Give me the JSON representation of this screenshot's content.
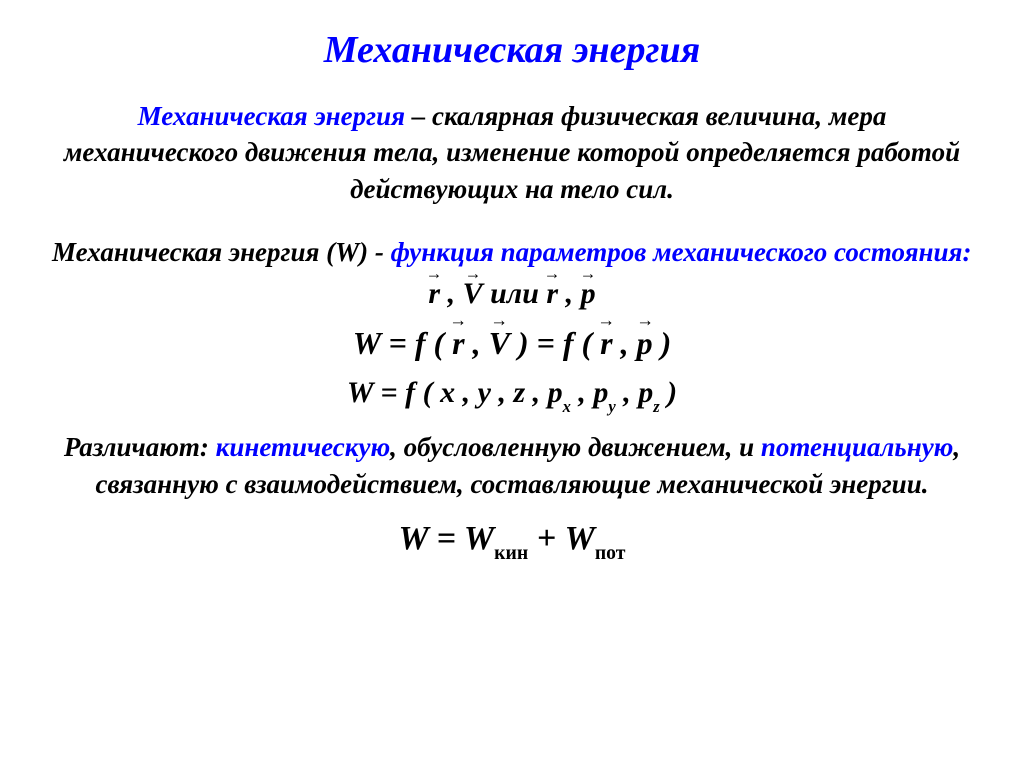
{
  "colors": {
    "accent": "#0000ff",
    "text": "#000000",
    "background": "#ffffff"
  },
  "fonts": {
    "family": "Times New Roman",
    "title_size_pt": 38,
    "body_size_pt": 27,
    "formula_size_pt": 32
  },
  "title": "Механическая энергия",
  "def": {
    "term": "Механическая энергия",
    "dash": " – ",
    "rest": "скалярная физическая величина, мера механического движения тела, изменение которой определяется работой  действующих на тело сил."
  },
  "line2": {
    "black1": "Механическая энергия (W) - ",
    "blue": "функция параметров механического состояния:",
    "params_or": "  или  ",
    "v_r": "r",
    "v_V": "V",
    "v_p": "p"
  },
  "formula1": {
    "W": "W",
    "eq": "  =  ",
    "f": "f",
    "op": " ( ",
    "cm": " , ",
    "cp": " )",
    "r": "r",
    "V": "V",
    "p": "p"
  },
  "formula2": {
    "W": "W",
    "eq": "  =  ",
    "f": "f",
    "op": " ( ",
    "x": "x",
    "y": "y",
    "z": "z",
    "p": "p",
    "sx": "x",
    "sy": "y",
    "sz": "z",
    "cm": " , ",
    "cp": " )"
  },
  "distinguish": {
    "t1": "Различают: ",
    "kin": "кинетическую",
    "t2": ", обусловленную движением, и ",
    "pot": "потенциальную",
    "t3": ", связанную с взаимодействием, составляющие механической энергии."
  },
  "final": {
    "W": "W",
    "eq": " = ",
    "W1": "W",
    "s1": "кин",
    "plus": " + ",
    "W2": "W",
    "s2": "пот"
  }
}
